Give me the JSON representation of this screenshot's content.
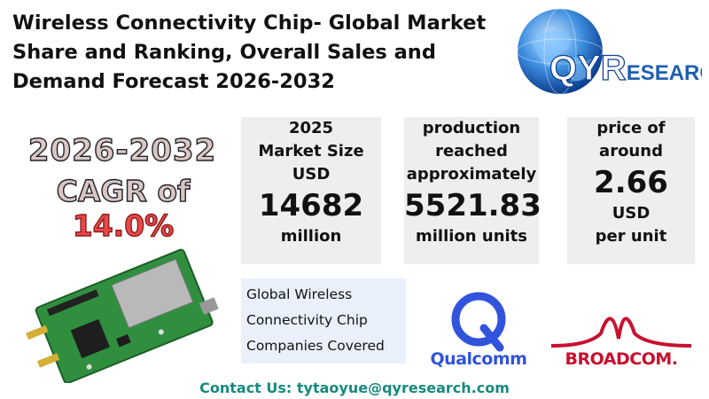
{
  "title": {
    "line1": "Wireless Connectivity Chip- Global Market",
    "line2": "Share and Ranking, Overall Sales and",
    "line3": "Demand Forecast 2026-2032"
  },
  "logo": {
    "brand_q": "QY",
    "brand_r": "R",
    "brand_rest": "ESEARCH",
    "icon": "globe-icon"
  },
  "cagr": {
    "years": "2026-2032",
    "prefix": "CAGR of ",
    "value": "14.0%"
  },
  "cards": {
    "market": {
      "l1": "2025",
      "l2": "Market Size",
      "l3": "USD",
      "value": "14682",
      "unit": "million"
    },
    "production": {
      "l1": "production",
      "l2": "reached",
      "l3": "approximately",
      "value": "5521.83",
      "unit": "million units"
    },
    "price": {
      "l1": "price of",
      "l2": "around",
      "value": "2.66",
      "u1": "USD",
      "u2": "per unit"
    }
  },
  "companies": {
    "l1": "Global Wireless",
    "l2": "Connectivity Chip",
    "l3": "Companies Covered"
  },
  "logos": {
    "qualcomm": "Qualcomm",
    "broadcom": "BROADCOM."
  },
  "contact": "Contact Us: tytaoyue@qyresearch.com",
  "colors": {
    "accent_red": "#e8474a",
    "brand_blue": "#1f5fb0",
    "contact_green": "#178a7f",
    "card_bg": "#eeeeee"
  }
}
